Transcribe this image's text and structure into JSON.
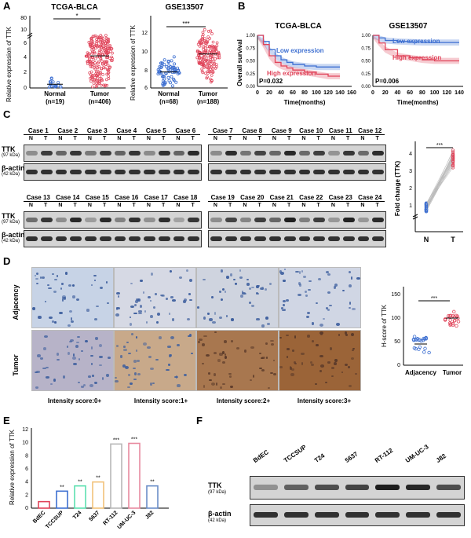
{
  "panels": {
    "A": "A",
    "B": "B",
    "C": "C",
    "D": "D",
    "E": "E",
    "F": "F"
  },
  "colors": {
    "normal": "#3d6fd1",
    "tumor": "#e0445a",
    "grid": "#999999"
  },
  "panelA": {
    "chart_data": [
      {
        "type": "scatter",
        "title": "TCGA-BLCA",
        "ylabel": "Relative  expression of TTK",
        "categories": [
          "Normal\n(n=19)",
          "Tumor\n(n=406)"
        ],
        "cat_labels": [
          [
            "Normal",
            "(n=19)"
          ],
          [
            "Tumor",
            "(n=406)"
          ]
        ],
        "yticks_low": [
          "0",
          "2",
          "4",
          "6"
        ],
        "yticks_high": [
          "10",
          "80"
        ],
        "significance": "*",
        "medians": [
          0.5,
          4.3
        ]
      },
      {
        "type": "scatter",
        "title": "GSE13507",
        "ylabel": "Relative expression of TTK",
        "categories": [
          "Normal\n(n=68)",
          "Tumor\n(n=188)"
        ],
        "cat_labels": [
          [
            "Normal",
            "(n=68)"
          ],
          [
            "Tumor",
            "(n=188)"
          ]
        ],
        "yticks": [
          "6",
          "8",
          "10",
          "12"
        ],
        "ylim": [
          6,
          12.5
        ],
        "significance": "***",
        "medians": [
          7.7,
          9.6
        ]
      }
    ]
  },
  "panelB": {
    "chart_data": [
      {
        "type": "line",
        "title": "TCGA-BLCA",
        "ylabel": "Overall survival",
        "xlabel": "Time(months)",
        "xticks": [
          "0",
          "20",
          "40",
          "60",
          "80",
          "100",
          "120",
          "140",
          "160"
        ],
        "yticks": [
          "0.00",
          "0.25",
          "0.50",
          "0.75",
          "1.00"
        ],
        "series": [
          {
            "name": "Low expression",
            "x": [
              0,
              10,
              20,
              30,
              40,
              50,
              60,
              80,
              100,
              120,
              140
            ],
            "values": [
              1.0,
              0.88,
              0.72,
              0.6,
              0.52,
              0.47,
              0.43,
              0.4,
              0.38,
              0.38,
              0.38
            ]
          },
          {
            "name": "High expression",
            "x": [
              0,
              10,
              20,
              30,
              40,
              50,
              60,
              80,
              100,
              120,
              140
            ],
            "values": [
              1.0,
              0.82,
              0.6,
              0.47,
              0.4,
              0.36,
              0.32,
              0.28,
              0.24,
              0.2,
              0.2
            ]
          }
        ],
        "pvalue": "P=0.032"
      },
      {
        "type": "line",
        "title": "GSE13507",
        "ylabel": "",
        "xlabel": "Time(months)",
        "xticks": [
          "0",
          "20",
          "40",
          "60",
          "80",
          "100",
          "120",
          "140"
        ],
        "yticks": [
          "0.00",
          "0.25",
          "0.50",
          "0.75",
          "1.00"
        ],
        "series": [
          {
            "name": "Low expression",
            "x": [
              0,
              10,
              20,
              40,
              60,
              80,
              100,
              120,
              140
            ],
            "values": [
              1.0,
              0.95,
              0.9,
              0.88,
              0.87,
              0.86,
              0.86,
              0.86,
              0.86
            ]
          },
          {
            "name": "High expression",
            "x": [
              0,
              10,
              20,
              40,
              60,
              80,
              100,
              120,
              140
            ],
            "values": [
              1.0,
              0.85,
              0.72,
              0.6,
              0.56,
              0.52,
              0.5,
              0.5,
              0.5
            ]
          }
        ],
        "pvalue": "P=0.006"
      }
    ]
  },
  "panelC": {
    "blot_top_cases": [
      "Case 1",
      "Case 2",
      "Case 3",
      "Case 4",
      "Case 5",
      "Case 6",
      "Case 7",
      "Case 8",
      "Case 9",
      "Case 10",
      "Case 11",
      "Case 12"
    ],
    "blot_bottom_cases": [
      "Case 13",
      "Case 14",
      "Case 15",
      "Case 16",
      "Case 17",
      "Case 18",
      "Case 19",
      "Case 20",
      "Case 21",
      "Case 22",
      "Case 23",
      "Case 24"
    ],
    "lane_n": "N",
    "lane_t": "T",
    "ttk": "TTK",
    "ttk_kda": "(97 kDa)",
    "actin": "β-actin",
    "actin_kda": "(42 kDa)",
    "chart_data": {
      "type": "scatter",
      "ylabel": "Fold change (TTK)",
      "categories": [
        "N",
        "T"
      ],
      "yticks": [
        "1",
        "2",
        "3",
        "4"
      ],
      "significance": "***",
      "values_N": [
        1.0,
        1.0,
        1.0,
        1.0,
        1.0,
        1.0,
        1.0,
        1.0,
        1.0,
        1.0,
        1.0,
        1.0
      ],
      "values_T": [
        3.3,
        3.5,
        3.6,
        3.7,
        3.8,
        3.9,
        4.0,
        4.1,
        4.2,
        4.3,
        3.4,
        3.95
      ]
    }
  },
  "panelD": {
    "row_labels": [
      "Adjacency",
      "Tumor"
    ],
    "intensity": [
      "Intensity score:0+",
      "Intensity score:1+",
      "Intensity score:2+",
      "Intensity score:3+"
    ],
    "chart_data": {
      "type": "scatter",
      "ylabel": "H-score of TTK",
      "categories": [
        "Adjacency",
        "Tumor"
      ],
      "yticks": [
        "0",
        "50",
        "100",
        "150"
      ],
      "ylim": [
        0,
        150
      ],
      "significance": "***",
      "means": [
        45,
        100
      ]
    }
  },
  "panelE": {
    "chart_data": {
      "type": "bar",
      "ylabel": "Relative expression of TTK",
      "categories": [
        "BdEC",
        "TCCSUP",
        "T24",
        "5637",
        "RT-112",
        "UM-UC-3",
        "J82"
      ],
      "values": [
        1.0,
        2.6,
        3.4,
        4.0,
        9.8,
        9.9,
        3.4
      ],
      "significance": [
        "",
        "**",
        "**",
        "**",
        "***",
        "***",
        "**"
      ],
      "yticks": [
        "0",
        "2",
        "4",
        "6",
        "8",
        "10",
        "12"
      ],
      "ylim": [
        0,
        12
      ]
    }
  },
  "panelF": {
    "cell_lines": [
      "BdEC",
      "TCCSUP",
      "T24",
      "5637",
      "RT-112",
      "UM-UC-3",
      "J82"
    ],
    "ttk": "TTK",
    "ttk_kda": "(97 kDa)",
    "actin": "β-actin",
    "actin_kda": "(42 kDa)"
  }
}
